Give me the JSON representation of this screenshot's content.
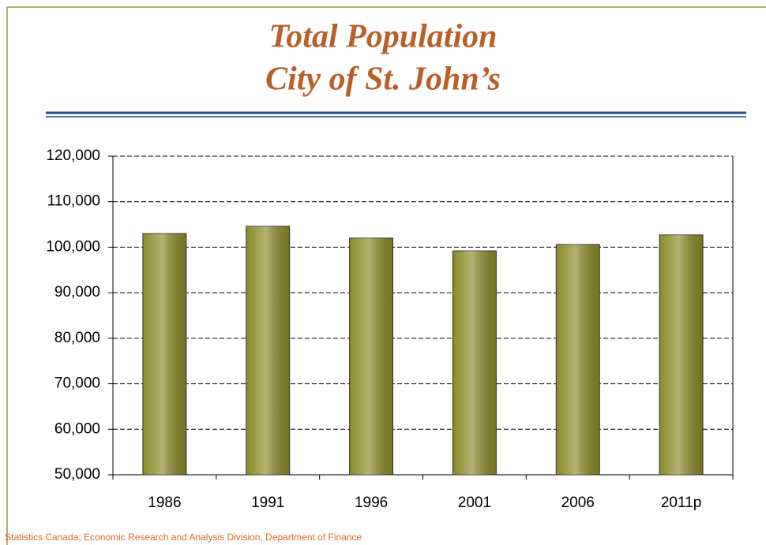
{
  "chart_data": {
    "type": "bar",
    "title": "Total Population",
    "subtitle": "City of St. John’s",
    "categories": [
      "1986",
      "1991",
      "1996",
      "2001",
      "2006",
      "2011p"
    ],
    "values": [
      103000,
      104600,
      102000,
      99200,
      100600,
      102700
    ],
    "color": "#8a8a28",
    "ylim": [
      50000,
      120000
    ],
    "yticks": [
      {
        "value": 50000,
        "label": "50,000"
      },
      {
        "value": 60000,
        "label": "60,000"
      },
      {
        "value": 70000,
        "label": "70,000"
      },
      {
        "value": 80000,
        "label": "80,000"
      },
      {
        "value": 90000,
        "label": "90,000"
      },
      {
        "value": 100000,
        "label": "100,000"
      },
      {
        "value": 110000,
        "label": "110,000"
      },
      {
        "value": 120000,
        "label": "120,000"
      }
    ],
    "grid": true,
    "source": "Statistics Canada; Economic Research and Analysis Division, Department of Finance"
  }
}
